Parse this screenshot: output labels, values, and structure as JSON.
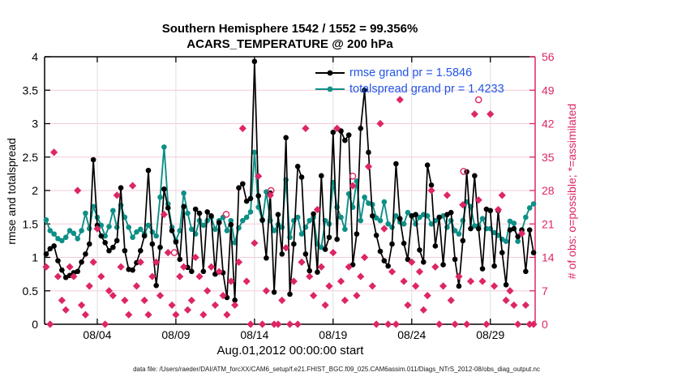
{
  "header": {
    "title1": "Southern Hemisphere 1542 / 1552 = 99.356%",
    "title2": "ACARS_TEMPERATURE @ 200 hPa"
  },
  "axes": {
    "left": {
      "label": "rmse and totalspread",
      "ticks": [
        {
          "v": 0,
          "label": "0"
        },
        {
          "v": 0.5,
          "label": "0.5"
        },
        {
          "v": 1,
          "label": "1"
        },
        {
          "v": 1.5,
          "label": "1.5"
        },
        {
          "v": 2,
          "label": "2"
        },
        {
          "v": 2.5,
          "label": "2.5"
        },
        {
          "v": 3,
          "label": "3"
        },
        {
          "v": 3.5,
          "label": "3.5"
        },
        {
          "v": 4,
          "label": "4"
        }
      ]
    },
    "right": {
      "label": "# of obs: o=possible; *=assimilated",
      "ticks": [
        {
          "v": 0,
          "label": "0"
        },
        {
          "v": 7,
          "label": "7"
        },
        {
          "v": 14,
          "label": "14"
        },
        {
          "v": 21,
          "label": "21"
        },
        {
          "v": 28,
          "label": "28"
        },
        {
          "v": 35,
          "label": "35"
        },
        {
          "v": 42,
          "label": "42"
        },
        {
          "v": 49,
          "label": "49"
        },
        {
          "v": 56,
          "label": "56"
        }
      ]
    },
    "x": {
      "label": "Aug.01,2012 00:00:00 start",
      "ticks": [
        {
          "v": 4,
          "label": "08/04"
        },
        {
          "v": 9,
          "label": "08/09"
        },
        {
          "v": 14,
          "label": "08/14"
        },
        {
          "v": 19,
          "label": "08/19"
        },
        {
          "v": 24,
          "label": "08/24"
        },
        {
          "v": 29,
          "label": "08/29"
        }
      ]
    }
  },
  "legend": {
    "items": [
      {
        "label": "rmse grand pr = 1.5846",
        "color": "#000000"
      },
      {
        "label": "totalspread grand pr = 1.4233",
        "color": "#0d8f86"
      }
    ],
    "text_color": "#2255e6"
  },
  "footer": {
    "caption": "data file: /Users/raeder/DAI/ATM_forcXX/CAM6_setup/f.e21.FHIST_BGC.f09_025.CAM6assim.011/Diags_NTrS_2012-08/obs_diag_output.nc"
  },
  "colors": {
    "rmse": "#000000",
    "totalspread": "#0d8f86",
    "obs": "#dd2664",
    "grid_h": "#f6cbd8",
    "grid_v": "#dedede",
    "legend_text": "#2255e6"
  },
  "chart_data": {
    "type": "line",
    "title": "Southern Hemisphere 1542 / 1552 = 99.356% — ACARS_TEMPERATURE @ 200 hPa",
    "xlabel": "Aug.01,2012 00:00:00 start",
    "ylabel_left": "rmse and totalspread",
    "ylabel_right": "# of obs: o=possible; *=assimilated",
    "x_unit": "day of August 2012, 6-hourly bins",
    "x_start_day": 0.75,
    "x_step_days": 0.25,
    "xlim": [
      0.65,
      31.85
    ],
    "ylim_left": [
      0,
      4
    ],
    "ylim_right": [
      0,
      56
    ],
    "grand_pr_rmse": 1.5846,
    "grand_pr_totalspread": 1.4233,
    "possible_total": 1552,
    "assimilated_total": 1542,
    "assimilated_pct": 99.356,
    "series": [
      {
        "name": "rmse",
        "style": "line+dot",
        "color": "#000000",
        "values": [
          1.05,
          1.13,
          1.17,
          0.95,
          0.81,
          0.7,
          0.73,
          0.77,
          0.79,
          0.93,
          1.05,
          1.2,
          2.46,
          1.48,
          1.32,
          1.22,
          1.1,
          1.15,
          1.25,
          2.04,
          1.1,
          0.82,
          0.81,
          0.92,
          1.1,
          1.32,
          2.3,
          1.2,
          0.58,
          1.15,
          2.02,
          1.74,
          1.4,
          1.23,
          0.97,
          1.76,
          0.85,
          0.79,
          1.72,
          1.66,
          0.79,
          1.68,
          1.62,
          0.75,
          1.52,
          0.77,
          0.4,
          1.49,
          0.36,
          2.04,
          2.1,
          1.84,
          1.88,
          3.93,
          1.92,
          1.56,
          0.99,
          1.96,
          0.48,
          1.64,
          1.05,
          2.79,
          0.45,
          1.2,
          2.36,
          2.2,
          1.05,
          0.8,
          1.65,
          0.78,
          2.22,
          1.12,
          1.3,
          2.87,
          1.27,
          2.89,
          2.75,
          2.83,
          0.89,
          1.35,
          2.93,
          3.5,
          2.57,
          1.62,
          1.33,
          1.09,
          0.95,
          0.87,
          1.2,
          2.4,
          1.58,
          1.21,
          0.97,
          1.62,
          1.64,
          1.11,
          0.93,
          2.38,
          2.08,
          1.17,
          1.6,
          0.89,
          1.64,
          1.67,
          0.97,
          0.57,
          1.25,
          2.28,
          1.43,
          2.22,
          1.43,
          0.83,
          1.72,
          1.7,
          0.87,
          1.7,
          1.07,
          0.59,
          1.41,
          1.43,
          1.31,
          1.41,
          0.79,
          1.41,
          1.07
        ]
      },
      {
        "name": "totalspread",
        "style": "line+dot",
        "color": "#0d8f86",
        "values": [
          1.56,
          1.4,
          1.35,
          1.28,
          1.25,
          1.3,
          1.4,
          1.36,
          1.28,
          1.4,
          1.66,
          1.43,
          1.76,
          1.6,
          1.48,
          1.32,
          1.46,
          1.7,
          1.45,
          1.78,
          1.6,
          1.45,
          1.3,
          1.38,
          1.42,
          1.35,
          1.48,
          1.38,
          1.32,
          1.9,
          2.65,
          1.8,
          1.45,
          1.25,
          1.4,
          1.96,
          1.66,
          1.42,
          1.35,
          1.55,
          1.48,
          1.55,
          1.6,
          1.42,
          1.55,
          1.6,
          1.4,
          1.55,
          1.22,
          1.44,
          1.55,
          1.6,
          1.68,
          2.57,
          1.75,
          1.55,
          1.98,
          1.55,
          1.4,
          1.49,
          1.45,
          2.16,
          1.3,
          1.55,
          1.6,
          1.35,
          1.45,
          1.55,
          1.6,
          1.2,
          1.15,
          1.55,
          1.5,
          2.12,
          1.75,
          1.6,
          1.42,
          1.95,
          1.75,
          2.14,
          1.55,
          1.9,
          1.81,
          1.79,
          1.59,
          1.55,
          1.83,
          1.5,
          1.45,
          1.62,
          1.53,
          1.5,
          1.67,
          1.62,
          1.5,
          1.6,
          1.64,
          1.62,
          1.5,
          1.55,
          1.6,
          1.62,
          1.45,
          1.55,
          1.4,
          1.35,
          1.55,
          1.83,
          1.76,
          1.47,
          1.47,
          1.58,
          1.43,
          1.43,
          1.37,
          1.33,
          1.27,
          1.24,
          1.54,
          1.51,
          1.24,
          1.4,
          1.6,
          1.74,
          1.8
        ]
      },
      {
        "name": "n_assimilated",
        "style": "asterisk",
        "axis": "right",
        "color": "#dd2664",
        "values": [
          12,
          0,
          36,
          10,
          5,
          3,
          12,
          10,
          28,
          4,
          2,
          8,
          13,
          20,
          10,
          0,
          7,
          6,
          27,
          12,
          5,
          2,
          29,
          8,
          13,
          5,
          2,
          10,
          13,
          6,
          23,
          15,
          4,
          2,
          10,
          12,
          3,
          5,
          14,
          10,
          2,
          7,
          12,
          4,
          11,
          6,
          2,
          9,
          4,
          13,
          41,
          9,
          0,
          17,
          31,
          0,
          7,
          27,
          0,
          0,
          5,
          16,
          0,
          9,
          0,
          13,
          41,
          10,
          6,
          24,
          12,
          4,
          8,
          15,
          41,
          9,
          5,
          12,
          29,
          6,
          10,
          14,
          33,
          8,
          0,
          42,
          20,
          0,
          11,
          0,
          47,
          9,
          4,
          13,
          8,
          11,
          3,
          6,
          28,
          12,
          0,
          8,
          27,
          5,
          0,
          10,
          25,
          0,
          9,
          44,
          26,
          9,
          0,
          44,
          8,
          24,
          27,
          5,
          7,
          4,
          0,
          19,
          4,
          0,
          0
        ]
      }
    ],
    "n_possible_extra_circles": [
      {
        "day": 8.9,
        "count": 15
      },
      {
        "day": 12.2,
        "count": 23
      },
      {
        "day": 15.05,
        "count": 28
      },
      {
        "day": 20.25,
        "count": 31
      },
      {
        "day": 27.3,
        "count": 32
      },
      {
        "day": 28.25,
        "count": 47
      }
    ]
  }
}
